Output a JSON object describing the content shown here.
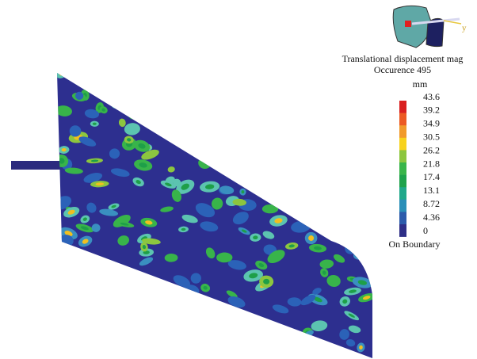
{
  "header": {
    "title": "Translational displacement mag",
    "subtitle": "Occurence 495"
  },
  "legend": {
    "unit": "mm",
    "ticks": [
      43.6,
      39.2,
      34.9,
      30.5,
      26.2,
      21.8,
      17.4,
      13.1,
      8.72,
      4.36,
      0
    ],
    "note": "On Boundary"
  },
  "triad": {
    "axis": "y"
  }
}
